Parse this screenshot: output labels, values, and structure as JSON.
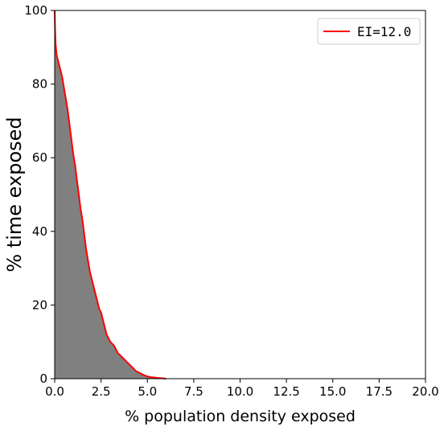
{
  "chart_data": {
    "type": "area",
    "title": "",
    "xlabel": "% population density exposed",
    "ylabel": "% time exposed",
    "xlim": [
      0,
      20
    ],
    "ylim": [
      0,
      100
    ],
    "x_ticks": [
      "0.0",
      "2.5",
      "5.0",
      "7.5",
      "10.0",
      "12.5",
      "15.0",
      "17.5",
      "20.0"
    ],
    "y_ticks": [
      "0",
      "20",
      "40",
      "60",
      "80",
      "100"
    ],
    "grid": false,
    "legend_position": "top-right",
    "series": [
      {
        "name": "EI=12.0",
        "line_color": "#ff0000",
        "fill_color": "#808080",
        "x": [
          0.0,
          0.02,
          0.05,
          0.1,
          0.2,
          0.3,
          0.4,
          0.5,
          0.6,
          0.7,
          0.8,
          0.9,
          1.0,
          1.1,
          1.2,
          1.3,
          1.4,
          1.5,
          1.6,
          1.7,
          1.8,
          1.9,
          2.0,
          2.1,
          2.2,
          2.3,
          2.4,
          2.5,
          2.6,
          2.7,
          2.8,
          2.9,
          3.0,
          3.2,
          3.4,
          3.6,
          3.8,
          4.0,
          4.2,
          4.4,
          4.6,
          4.8,
          5.0,
          5.2,
          5.4,
          5.6,
          5.8,
          6.0
        ],
        "y": [
          100,
          95,
          91,
          88,
          86,
          84,
          82,
          79,
          76,
          73,
          69,
          65,
          61,
          58,
          54,
          50,
          46,
          43,
          39,
          35,
          32,
          29,
          27,
          25,
          23,
          21,
          19,
          18,
          16,
          14,
          12,
          11,
          10,
          9,
          7,
          6,
          5,
          4,
          3,
          2,
          1.5,
          1,
          0.6,
          0.4,
          0.3,
          0.2,
          0.1,
          0
        ]
      }
    ]
  }
}
